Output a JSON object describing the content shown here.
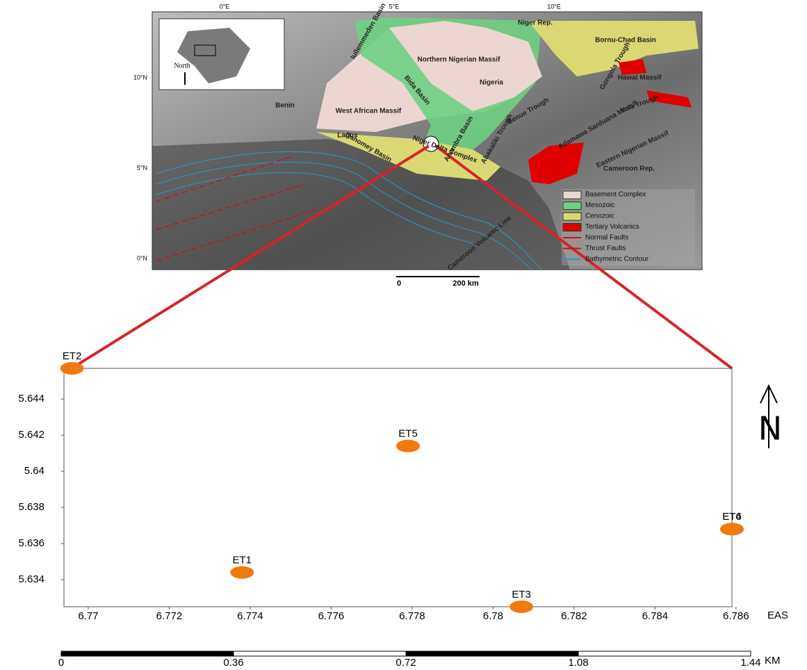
{
  "map": {
    "lon_labels": [
      "0°E",
      "5°E",
      "10°E"
    ],
    "lat_labels": [
      "10°N",
      "5°N",
      "0°N"
    ],
    "inset_label": "North",
    "scale_labels": [
      "0",
      "200 km"
    ],
    "labels": [
      "Niger Rep.",
      "Bornu-Chad Basin",
      "Iullemmeden Basin",
      "Northern Nigerian Massif",
      "Nigeria",
      "Benin",
      "West African Massif",
      "Bida Basin",
      "Anambra Basin",
      "Benue Trough",
      "Yola Trough",
      "Gongola Trough",
      "Hawal Massif",
      "Adamawa Sarduana Massif",
      "Eastern Nigerian Massif",
      "Cameroon Rep.",
      "Lagos",
      "Dahomey Basin",
      "Niger Delta Complex",
      "Abakaliki Trough",
      "Cameroon Volcanic Line"
    ],
    "legend": [
      {
        "name": "Basement Complex",
        "color": "#ecd6d2"
      },
      {
        "name": "Mesozoic",
        "color": "#6fcf82"
      },
      {
        "name": "Cenozoic",
        "color": "#d9d873"
      },
      {
        "name": "Tertiary Volcanics",
        "color": "#e00000"
      },
      {
        "name": "Normal Faults",
        "color": "#d01010"
      },
      {
        "name": "Thrust Faults",
        "color": "#d01010"
      },
      {
        "name": "Bathymetric Contour",
        "color": "#2a9ad0"
      }
    ]
  },
  "chart_data": {
    "type": "scatter",
    "point_labels": [
      "ET2",
      "ET5",
      "ET1",
      "ET3",
      "ET6",
      "ET4"
    ],
    "x": [
      6.7696,
      6.7779,
      6.7738,
      6.7807,
      6.7859,
      6.7859
    ],
    "values": [
      5.6457,
      5.6414,
      5.6344,
      5.6325,
      5.6368,
      5.6368
    ],
    "color": "#f07a10",
    "xlabel": "EAS",
    "xlim": [
      6.7694,
      6.7859
    ],
    "ylim": [
      5.6325,
      5.6457
    ],
    "xticks": [
      6.77,
      6.772,
      6.774,
      6.776,
      6.778,
      6.78,
      6.782,
      6.784,
      6.786
    ],
    "yticks": [
      5.634,
      5.636,
      5.638,
      5.64,
      5.642,
      5.644
    ],
    "north_arrow": "N",
    "scale_bar": {
      "ticks": [
        0,
        0.36,
        0.72,
        1.08,
        1.44
      ],
      "unit": "KM"
    }
  }
}
